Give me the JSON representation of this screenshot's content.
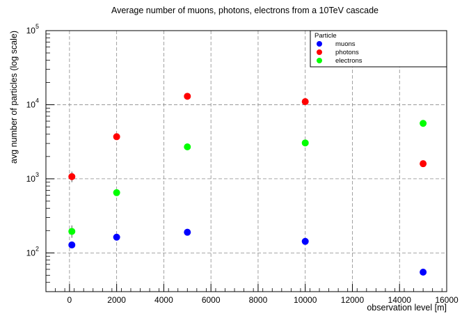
{
  "chart_data": {
    "type": "scatter",
    "title": "Average number of muons, photons, electrons from a 10TeV cascade",
    "xlabel": "observation level [m]",
    "ylabel": "avg number of particles (log scale)",
    "xlim": [
      -1000,
      16000
    ],
    "ylim": [
      30,
      100000
    ],
    "yscale": "log",
    "x_ticks": [
      0,
      2000,
      4000,
      6000,
      8000,
      10000,
      12000,
      14000,
      16000
    ],
    "y_ticks": [
      {
        "base": "10",
        "exp": "2",
        "value": 100
      },
      {
        "base": "10",
        "exp": "3",
        "value": 1000
      },
      {
        "base": "10",
        "exp": "4",
        "value": 10000
      },
      {
        "base": "10",
        "exp": "5",
        "value": 100000
      }
    ],
    "grid": true,
    "legend": {
      "title": "Particle",
      "position": "top-right"
    },
    "series": [
      {
        "name": "muons",
        "color": "#0000ff",
        "points": [
          {
            "x": 100,
            "y": 128
          },
          {
            "x": 2000,
            "y": 163
          },
          {
            "x": 5000,
            "y": 190
          },
          {
            "x": 10000,
            "y": 143
          },
          {
            "x": 15000,
            "y": 55
          }
        ]
      },
      {
        "name": "photons",
        "color": "#ff0000",
        "points": [
          {
            "x": 100,
            "y": 1070,
            "err_low": 900,
            "err_high": 1250
          },
          {
            "x": 2000,
            "y": 3700
          },
          {
            "x": 5000,
            "y": 13000
          },
          {
            "x": 10000,
            "y": 11000
          },
          {
            "x": 15000,
            "y": 1600
          }
        ]
      },
      {
        "name": "electrons",
        "color": "#00ff00",
        "points": [
          {
            "x": 100,
            "y": 195,
            "err_low": 160,
            "err_high": 235
          },
          {
            "x": 2000,
            "y": 650
          },
          {
            "x": 5000,
            "y": 2700
          },
          {
            "x": 10000,
            "y": 3050
          },
          {
            "x": 15000,
            "y": 5600
          }
        ]
      }
    ]
  }
}
